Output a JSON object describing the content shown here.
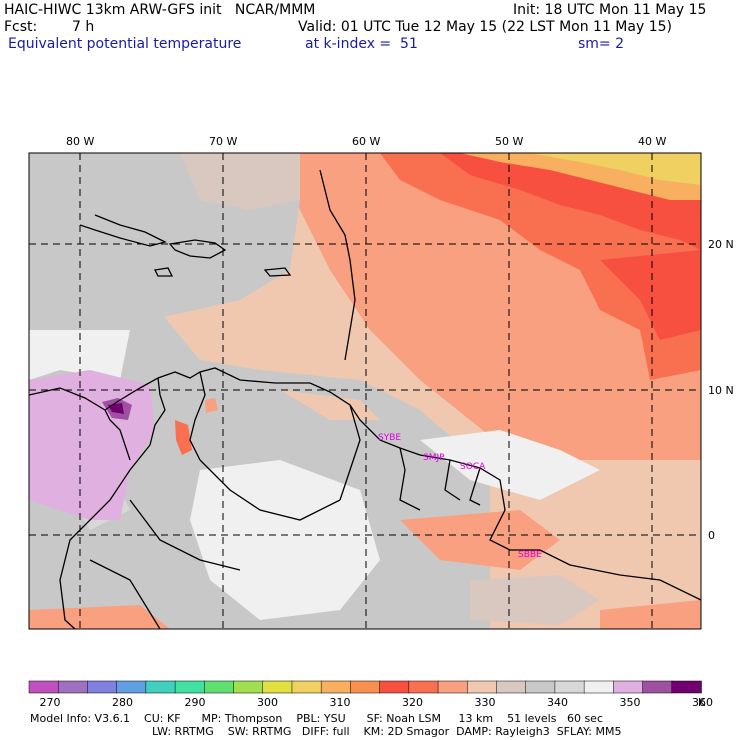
{
  "header": {
    "model": "HAIC-HIWC 13km ARW-GFS init   NCAR/MMM",
    "init": "Init: 18 UTC Mon 11 May 15",
    "fcst_label": "Fcst:",
    "fcst_value": "7 h",
    "valid": "Valid: 01 UTC Tue 12 May 15 (22 LST Mon 11 May 15)",
    "field": "Equivalent potential temperature",
    "level": "at k-index =  51",
    "smooth": "sm= 2"
  },
  "map": {
    "lon_labels": [
      "80 W",
      "70 W",
      "60 W",
      "50 W",
      "40 W"
    ],
    "lat_labels": [
      "20 N",
      "10 N",
      "0"
    ],
    "stations": [
      "SYBE",
      "SMJP",
      "SOCA",
      "SBBE"
    ]
  },
  "colorbar": {
    "colors": [
      "#c050c0",
      "#a070c0",
      "#8080e0",
      "#60a0e0",
      "#40d0c0",
      "#40e0a0",
      "#60e070",
      "#a0e050",
      "#e0e040",
      "#f0d060",
      "#f8b060",
      "#f89050",
      "#f85040",
      "#f87050",
      "#f8a080",
      "#f0c8b0",
      "#d8c8c0",
      "#c8c8c8",
      "#d8d8d8",
      "#f0f0f0",
      "#e0b0e0",
      "#a050a0",
      "#700070"
    ],
    "ticks": [
      "270",
      "280",
      "290",
      "300",
      "310",
      "320",
      "330",
      "340",
      "350",
      "360"
    ],
    "unit": "K"
  },
  "model_info": {
    "line1": "Model Info: V3.6.1    CU: KF      MP: Thompson    PBL: YSU      SF: Noah LSM     13 km    51 levels   60 sec",
    "line2": "LW: RRTMG    SW: RRTMG   DIFF: full    KM: 2D Smagor  DAMP: Rayleigh3  SFLAY: MM5"
  }
}
